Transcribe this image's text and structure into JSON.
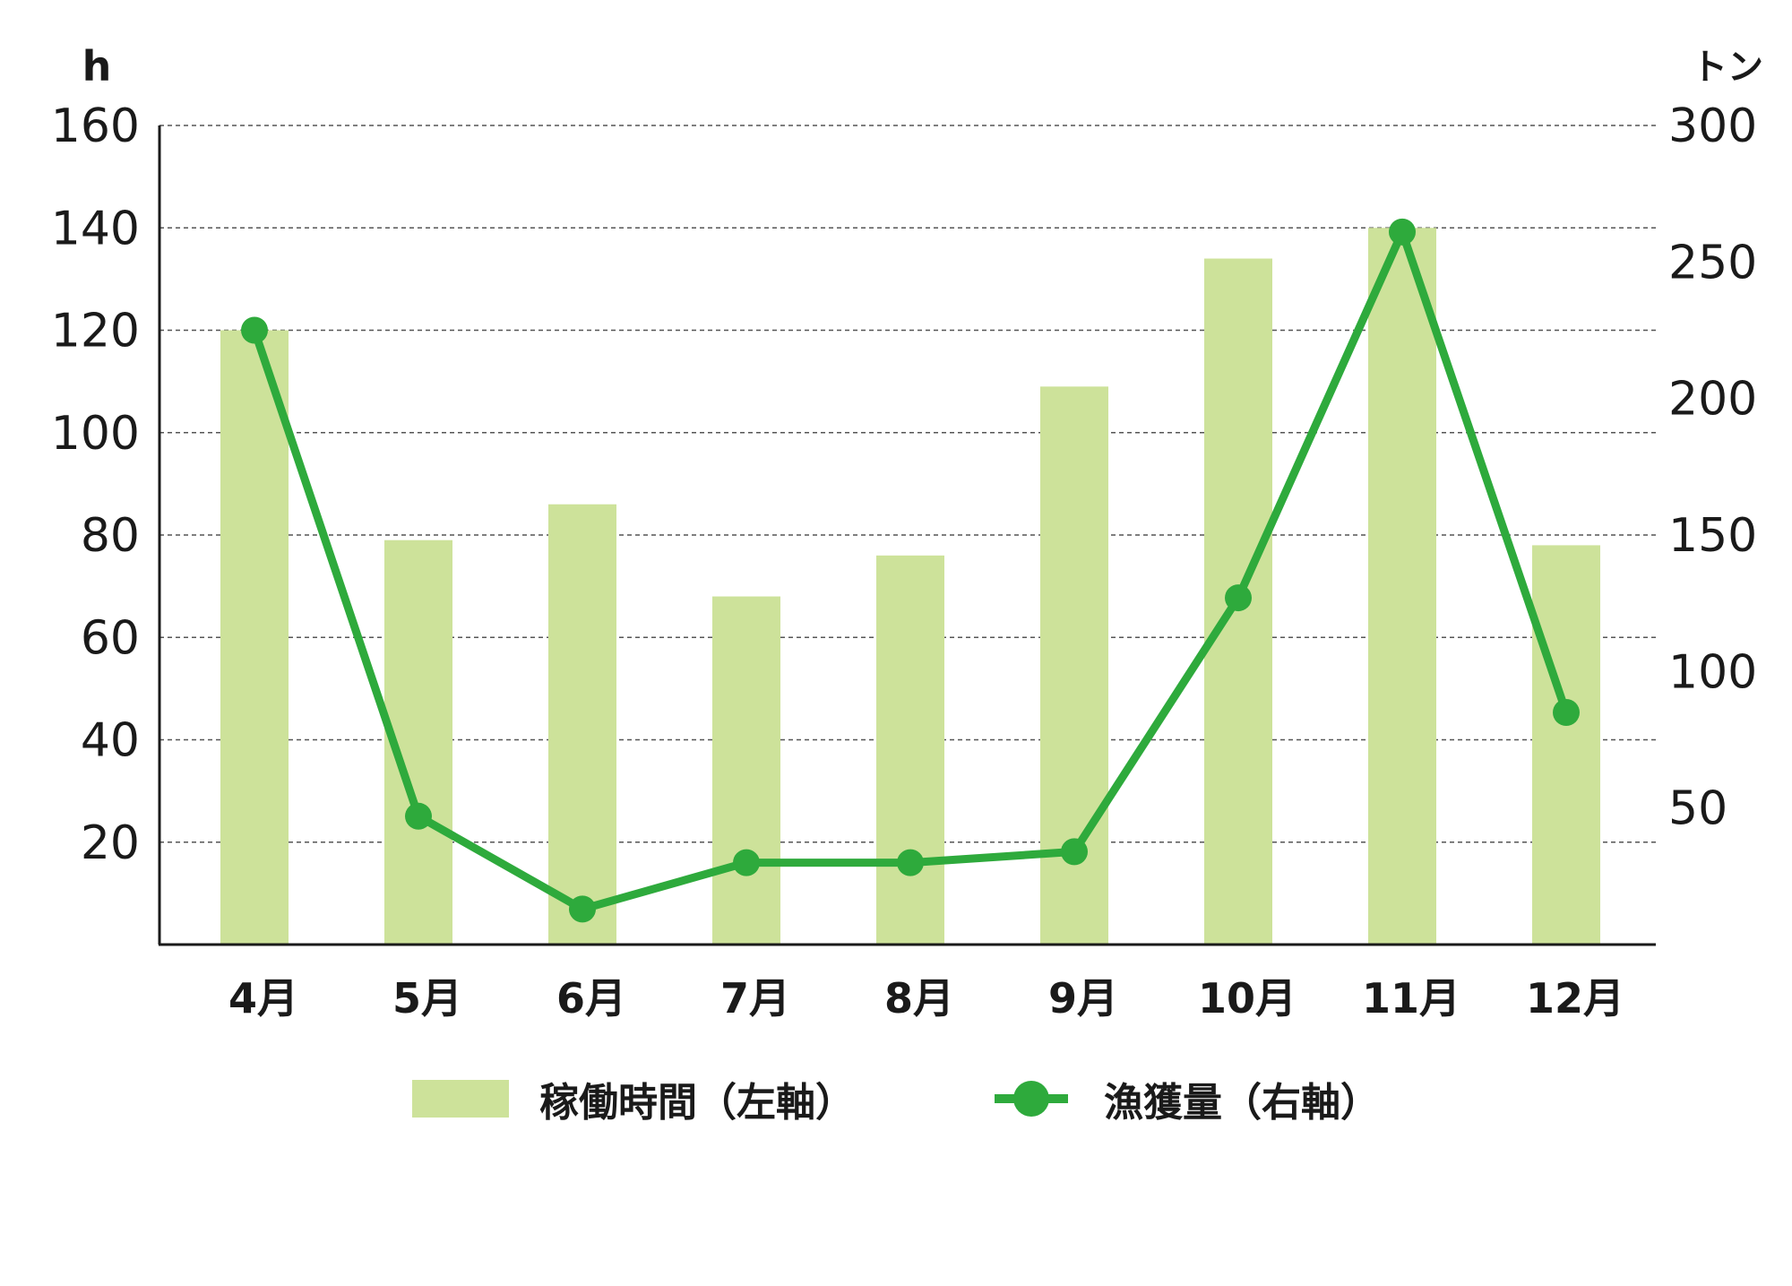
{
  "chart_data": {
    "type": "bar",
    "categories": [
      "4月",
      "5月",
      "6月",
      "7月",
      "8月",
      "9月",
      "10月",
      "11月",
      "12月"
    ],
    "series": [
      {
        "name": "稼働時間（左軸）",
        "type": "bar",
        "axis": "left",
        "color": "#cde29a",
        "values": [
          120,
          79,
          86,
          68,
          76,
          109,
          134,
          140,
          78
        ]
      },
      {
        "name": "漁獲量（右軸）",
        "type": "line",
        "axis": "right",
        "color": "#2eaa3c",
        "values": [
          225,
          47,
          13,
          30,
          30,
          34,
          127,
          261,
          85
        ]
      }
    ],
    "left_axis": {
      "unit": "h",
      "ylim": [
        0,
        160
      ],
      "ticks": [
        20,
        40,
        60,
        80,
        100,
        120,
        140,
        160
      ],
      "tick_labels": [
        "20",
        "40",
        "60",
        "80",
        "100",
        "120",
        "140",
        "160"
      ]
    },
    "right_axis": {
      "unit": "トン",
      "ylim": [
        0,
        300
      ],
      "ticks": [
        50,
        100,
        150,
        200,
        250,
        300
      ],
      "tick_labels": [
        "50",
        "100",
        "150",
        "200",
        "250",
        "300"
      ]
    },
    "grid": true,
    "legend_position": "bottom"
  }
}
